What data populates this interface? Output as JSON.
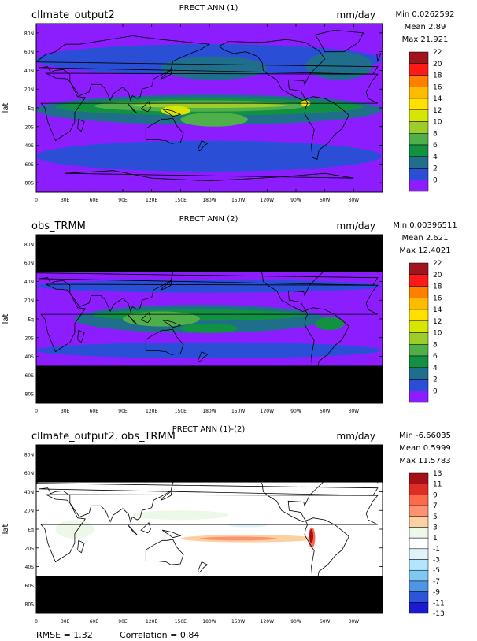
{
  "panels": [
    {
      "left_title": "cllmate_output2",
      "center_title": "PRECT ANN (1)",
      "units": "mm/day",
      "stats": {
        "min": "Min 0.0262592",
        "mean": "Mean 2.89",
        "max": "Max 21.921"
      },
      "ylabel": "lat",
      "lat_ticks": [
        "80N",
        "60N",
        "40N",
        "20N",
        "Eq",
        "20S",
        "40S",
        "60S",
        "80S"
      ],
      "lon_ticks": [
        "0",
        "30E",
        "60E",
        "90E",
        "120E",
        "150E",
        "180W",
        "150W",
        "120W",
        "90W",
        "60W",
        "30W"
      ],
      "colorbar": {
        "levels": [
          "22",
          "20",
          "18",
          "16",
          "14",
          "12",
          "10",
          "8",
          "6",
          "4",
          "2",
          "0"
        ],
        "colors": [
          "#a0141e",
          "#ff1a1a",
          "#ff7f00",
          "#ffbb00",
          "#ffe000",
          "#d6e600",
          "#9ccd2a",
          "#4fb04a",
          "#129142",
          "#1f6e8c",
          "#2a4fd6",
          "#8c1dff"
        ]
      },
      "coverage": {
        "lat_min": -90,
        "lat_max": 90
      },
      "field": "model"
    },
    {
      "left_title": "obs_TRMM",
      "center_title": "PRECT ANN (2)",
      "units": "mm/day",
      "stats": {
        "min": "Min 0.00396511",
        "mean": "Mean 2.621",
        "max": "Max 12.4021"
      },
      "ylabel": "lat",
      "lat_ticks": [
        "80N",
        "60N",
        "40N",
        "20N",
        "Eq",
        "20S",
        "40S",
        "60S",
        "80S"
      ],
      "lon_ticks": [
        "0",
        "30E",
        "60E",
        "90E",
        "120E",
        "150E",
        "180W",
        "150W",
        "120W",
        "90W",
        "60W",
        "30W"
      ],
      "colorbar": {
        "levels": [
          "22",
          "20",
          "18",
          "16",
          "14",
          "12",
          "10",
          "8",
          "6",
          "4",
          "2",
          "0"
        ],
        "colors": [
          "#a0141e",
          "#ff1a1a",
          "#ff7f00",
          "#ffbb00",
          "#ffe000",
          "#d6e600",
          "#9ccd2a",
          "#4fb04a",
          "#129142",
          "#1f6e8c",
          "#2a4fd6",
          "#8c1dff"
        ]
      },
      "coverage": {
        "lat_min": -50,
        "lat_max": 50
      },
      "field": "obs"
    },
    {
      "left_title": "cllmate_output2, obs_TRMM",
      "center_title": "PRECT ANN (1)-(2)",
      "units": "mm/day",
      "stats": {
        "min": "Min -6.66035",
        "mean": "Mean 0.5999",
        "max": "Max 11.5783"
      },
      "ylabel": "lat",
      "lat_ticks": [
        "80N",
        "60N",
        "40N",
        "20N",
        "Eq",
        "20S",
        "40S",
        "60S",
        "80S"
      ],
      "lon_ticks": [
        "0",
        "30E",
        "60E",
        "90E",
        "120E",
        "150E",
        "180W",
        "150W",
        "120W",
        "90W",
        "60W",
        "30W"
      ],
      "colorbar": {
        "levels": [
          "13",
          "11",
          "9",
          "7",
          "5",
          "3",
          "1",
          "-1",
          "-3",
          "-5",
          "-7",
          "-9",
          "-11",
          "-13"
        ],
        "colors": [
          "#a50f15",
          "#de2d26",
          "#fb6a4a",
          "#fc9272",
          "#fdd0a2",
          "#edf8e9",
          "#ffffff",
          "#e0f3f8",
          "#b3e5fc",
          "#7ec8f2",
          "#4f95e6",
          "#2c55d8",
          "#1a1ad0"
        ]
      },
      "coverage": {
        "lat_min": -50,
        "lat_max": 50
      },
      "field": "diff"
    }
  ],
  "footer": {
    "rmse": "RMSE = 1.32",
    "correlation": "Correlation = 0.84"
  },
  "chart_data": [
    {
      "type": "heatmap",
      "title": "PRECT ANN (1)",
      "ylabel": "lat",
      "units": "mm/day",
      "xlim": [
        0,
        360
      ],
      "ylim": [
        -90,
        90
      ],
      "min": 0.0262592,
      "mean": 2.89,
      "max": 21.921
    },
    {
      "type": "heatmap",
      "title": "PRECT ANN (2)",
      "ylabel": "lat",
      "units": "mm/day",
      "xlim": [
        0,
        360
      ],
      "ylim": [
        -90,
        90
      ],
      "data_lat_range": [
        -50,
        50
      ],
      "min": 0.00396511,
      "mean": 2.621,
      "max": 12.4021
    },
    {
      "type": "heatmap",
      "title": "PRECT ANN (1)-(2)",
      "ylabel": "lat",
      "units": "mm/day",
      "xlim": [
        0,
        360
      ],
      "ylim": [
        -90,
        90
      ],
      "data_lat_range": [
        -50,
        50
      ],
      "min": -6.66035,
      "mean": 0.5999,
      "max": 11.5783,
      "rmse": 1.32,
      "correlation": 0.84
    }
  ]
}
